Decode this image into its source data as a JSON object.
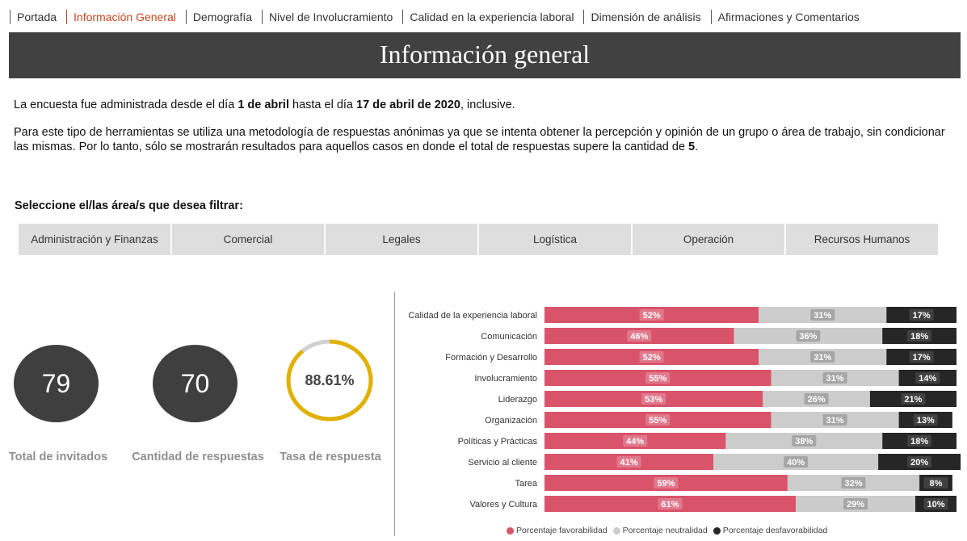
{
  "nav": {
    "tabs": [
      {
        "label": "Portada",
        "active": false
      },
      {
        "label": "Información General",
        "active": true
      },
      {
        "label": "Demografía",
        "active": false
      },
      {
        "label": "Nivel de Involucramiento",
        "active": false
      },
      {
        "label": "Calidad en la experiencia laboral",
        "active": false
      },
      {
        "label": "Dimensión de análisis",
        "active": false
      },
      {
        "label": "Afirmaciones y Comentarios",
        "active": false
      }
    ],
    "active_color": "#c8461e"
  },
  "banner": {
    "title": "Información general"
  },
  "intro": {
    "p1_a": "La encuesta fue administrada desde el día ",
    "p1_b": "1 de abril",
    "p1_c": " hasta el día ",
    "p1_d": "17 de abril de 2020",
    "p1_e": ", inclusive.",
    "p2_a": "Para este tipo de herramientas se utiliza una metodología de respuestas anónimas ya que se intenta obtener la percepción y opinión de un grupo o área de trabajo, sin condicionar las mismas. Por lo tanto, sólo se mostrarán resultados para aquellos casos en donde el total de respuestas supere la cantidad de ",
    "p2_b": "5",
    "p2_c": "."
  },
  "filter": {
    "label": "Seleccione el/las área/s que desea filtrar:",
    "options": [
      "Administración y Finanzas",
      "Comercial",
      "Legales",
      "Logística",
      "Operación",
      "Recursos Humanos"
    ]
  },
  "kpis": {
    "invitados": {
      "value": "79",
      "label": "Total de invitados"
    },
    "respuestas": {
      "value": "70",
      "label": "Cantidad de respuestas"
    },
    "tasa": {
      "value": "88.61%",
      "label": "Tasa de respuesta",
      "fraction": 0.8861
    }
  },
  "colors": {
    "favorable": "#d9536b",
    "neutral": "#cccccc",
    "desfavorable": "#262626",
    "gauge": "#e0b100",
    "gauge_track": "#d0d0d0"
  },
  "chart_data": {
    "type": "bar",
    "orientation": "horizontal",
    "stacked": "100%",
    "categories": [
      "Calidad de la experiencia laboral",
      "Comunicación",
      "Formación y Desarrollo",
      "Involucramiento",
      "Liderazgo",
      "Organización",
      "Políticas y Prácticas",
      "Servicio al cliente",
      "Tarea",
      "Valores y Cultura"
    ],
    "series": [
      {
        "name": "Porcentaje favorabilidad",
        "values": [
          52,
          46,
          52,
          55,
          53,
          55,
          44,
          41,
          59,
          61
        ]
      },
      {
        "name": "Porcentaje neutralidad",
        "values": [
          31,
          36,
          31,
          31,
          26,
          31,
          38,
          40,
          32,
          29
        ]
      },
      {
        "name": "Porcentaje desfavorabilidad",
        "values": [
          17,
          18,
          17,
          14,
          21,
          13,
          18,
          20,
          8,
          10
        ]
      }
    ],
    "xlim": [
      0,
      100
    ],
    "legend_position": "bottom",
    "grid": false
  }
}
